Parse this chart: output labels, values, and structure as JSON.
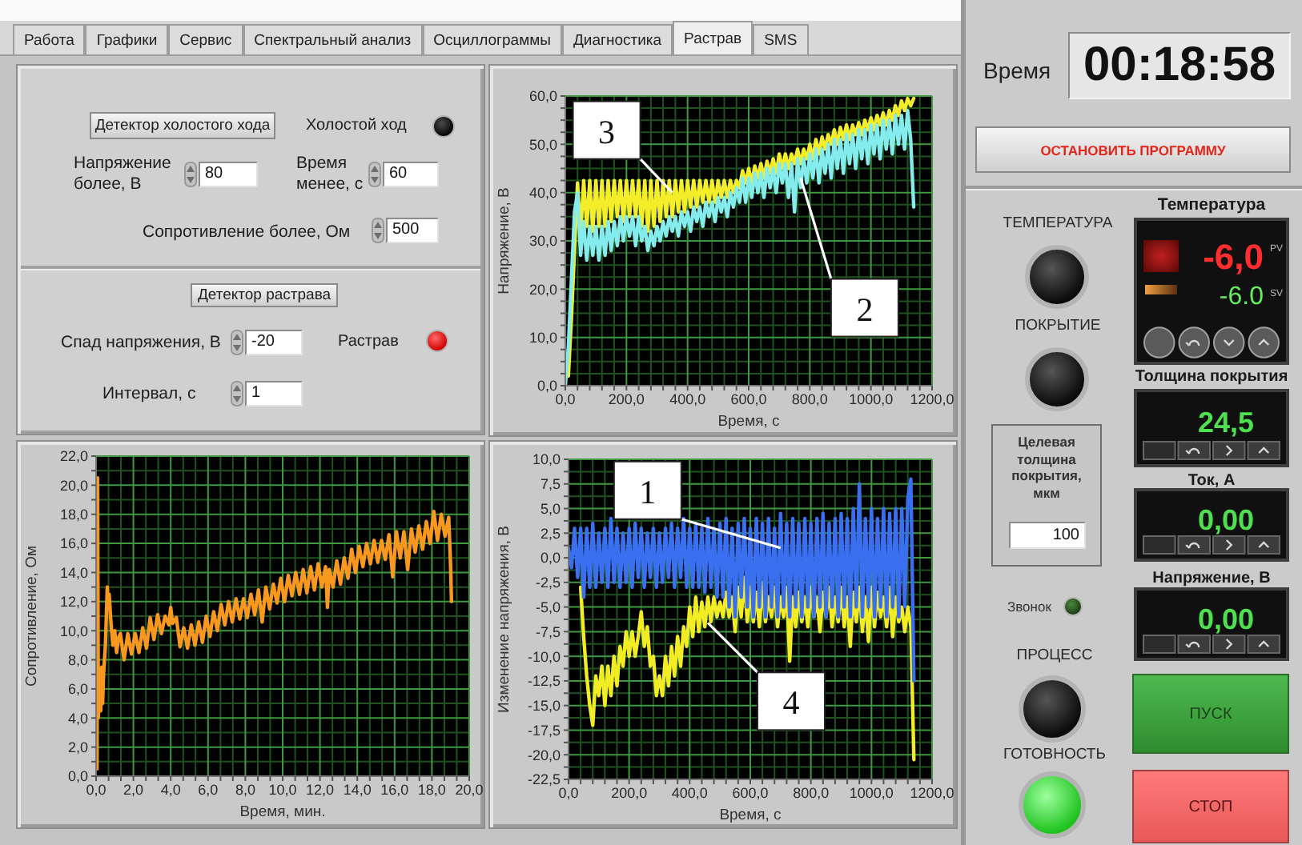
{
  "chart_data": [
    {
      "type": "other",
      "annotations": [
        "Работа",
        "Графики",
        "Сервис",
        "Спектральный анализ",
        "Осциллограммы",
        "Диагностика",
        "Растрав",
        "SMS"
      ]
    },
    {
      "type": "other",
      "annotations": [
        "Детектор холостого хода",
        "Холостой ход",
        "Напряжение более, В",
        "80",
        "Время менее, с",
        "60",
        "Сопротивление более, Ом",
        "500",
        "Детектор растрава",
        "Спад напряжения, В",
        "-20",
        "Растрав",
        "Интервал, с",
        "1"
      ]
    },
    {
      "type": "line",
      "xlabel": "Время, с",
      "ylabel": "Напряжение, В",
      "xlim": [
        0,
        1200
      ],
      "ylim": [
        0,
        60
      ],
      "xticks": [
        {
          "value": 0,
          "label": "0,0"
        },
        {
          "value": 40,
          "label": null
        },
        {
          "value": 80,
          "label": null
        },
        {
          "value": 120,
          "label": null
        },
        {
          "value": 160,
          "label": null
        },
        {
          "value": 200,
          "label": "200,0"
        },
        {
          "value": 240,
          "label": null
        },
        {
          "value": 280,
          "label": null
        },
        {
          "value": 320,
          "label": null
        },
        {
          "value": 360,
          "label": null
        },
        {
          "value": 400,
          "label": "400,0"
        },
        {
          "value": 440,
          "label": null
        },
        {
          "value": 480,
          "label": null
        },
        {
          "value": 520,
          "label": null
        },
        {
          "value": 560,
          "label": null
        },
        {
          "value": 600,
          "label": "600,0"
        },
        {
          "value": 640,
          "label": null
        },
        {
          "value": 680,
          "label": null
        },
        {
          "value": 720,
          "label": null
        },
        {
          "value": 760,
          "label": null
        },
        {
          "value": 800,
          "label": "800,0"
        },
        {
          "value": 840,
          "label": null
        },
        {
          "value": 880,
          "label": null
        },
        {
          "value": 920,
          "label": null
        },
        {
          "value": 960,
          "label": null
        },
        {
          "value": 1000,
          "label": "1000,0"
        },
        {
          "value": 1040,
          "label": null
        },
        {
          "value": 1080,
          "label": null
        },
        {
          "value": 1120,
          "label": null
        },
        {
          "value": 1160,
          "label": null
        },
        {
          "value": 1200,
          "label": "1200,0"
        }
      ],
      "yticks": [
        {
          "value": 0,
          "label": "0,0"
        },
        {
          "value": 2.5,
          "label": null
        },
        {
          "value": 5,
          "label": null
        },
        {
          "value": 7.5,
          "label": null
        },
        {
          "value": 10,
          "label": "10,0"
        },
        {
          "value": 12.5,
          "label": null
        },
        {
          "value": 15,
          "label": null
        },
        {
          "value": 17.5,
          "label": null
        },
        {
          "value": 20,
          "label": "20,0"
        },
        {
          "value": 22.5,
          "label": null
        },
        {
          "value": 25,
          "label": null
        },
        {
          "value": 27.5,
          "label": null
        },
        {
          "value": 30,
          "label": "30,0"
        },
        {
          "value": 32.5,
          "label": null
        },
        {
          "value": 35,
          "label": null
        },
        {
          "value": 37.5,
          "label": null
        },
        {
          "value": 40,
          "label": "40,0"
        },
        {
          "value": 42.5,
          "label": null
        },
        {
          "value": 45,
          "label": null
        },
        {
          "value": 47.5,
          "label": null
        },
        {
          "value": 50,
          "label": "50,0"
        },
        {
          "value": 52.5,
          "label": null
        },
        {
          "value": 55,
          "label": null
        },
        {
          "value": 57.5,
          "label": null
        },
        {
          "value": 60,
          "label": "60,0"
        }
      ],
      "grid": true,
      "x": [
        0,
        10,
        20,
        30,
        40,
        50,
        60,
        70,
        80,
        90,
        100,
        110,
        120,
        130,
        140,
        150,
        160,
        170,
        180,
        190,
        200,
        210,
        220,
        230,
        240,
        250,
        260,
        270,
        280,
        290,
        300,
        310,
        320,
        330,
        340,
        350,
        360,
        370,
        380,
        390,
        400,
        410,
        420,
        430,
        440,
        450,
        460,
        470,
        480,
        490,
        500,
        510,
        520,
        530,
        540,
        550,
        560,
        570,
        580,
        590,
        600,
        610,
        620,
        630,
        640,
        650,
        660,
        670,
        680,
        690,
        700,
        710,
        720,
        730,
        740,
        750,
        760,
        770,
        780,
        790,
        800,
        810,
        820,
        830,
        840,
        850,
        860,
        870,
        880,
        890,
        900,
        910,
        920,
        930,
        940,
        950,
        960,
        970,
        980,
        990,
        1000,
        1010,
        1020,
        1030,
        1040,
        1050,
        1060,
        1070,
        1080,
        1090,
        1100,
        1110,
        1120,
        1130,
        1140
      ],
      "series": [
        {
          "color": "#f4ee2a",
          "values": [
            null,
            2,
            14,
            28,
            42,
            31,
            42.5,
            33,
            42.5,
            32,
            42.5,
            33,
            42.5,
            33,
            42.5,
            34,
            42.5,
            35,
            42.5,
            34,
            42.5,
            35,
            42.5,
            35,
            42.5,
            33,
            42.5,
            32,
            42.5,
            33,
            42.5,
            34,
            42.5,
            35,
            42.5,
            35,
            42.5,
            36,
            42.5,
            36,
            42.5,
            37,
            42.5,
            37,
            42.5,
            38,
            42.5,
            38,
            42.5,
            38,
            42.5,
            39,
            42.5,
            39,
            42.5,
            40,
            42.5,
            41,
            44.5,
            42,
            45,
            42,
            45.5,
            43,
            46,
            43,
            46.5,
            44,
            47,
            44,
            48,
            45,
            48,
            45,
            48,
            46,
            49,
            46,
            49,
            47,
            50,
            47,
            51,
            48,
            51.5,
            49,
            52,
            50,
            53,
            50,
            53.5,
            51,
            54,
            51,
            54,
            52,
            54.5,
            52,
            55,
            53,
            55.5,
            53,
            56,
            54,
            56.5,
            54,
            57,
            55,
            58,
            56,
            59,
            57,
            59.5,
            58,
            59.5
          ]
        },
        {
          "color": "#84ecec",
          "values": [
            0,
            8,
            22,
            36,
            40,
            27,
            34,
            26,
            33,
            27,
            33,
            26,
            33,
            27,
            34,
            28,
            34,
            29,
            35,
            30,
            35,
            31,
            35,
            29,
            35,
            30,
            33,
            28,
            32,
            29,
            33,
            30,
            34,
            31,
            35,
            32,
            35,
            31,
            36,
            33,
            36,
            32,
            37,
            34,
            37,
            33,
            38,
            35,
            38,
            34,
            39,
            36,
            39,
            35,
            40,
            37,
            41,
            38,
            43,
            38,
            43,
            39,
            44,
            40,
            44,
            39,
            45,
            41,
            45,
            40,
            46,
            42,
            46,
            39,
            46,
            36,
            47,
            41,
            47,
            42,
            48,
            43,
            49,
            42,
            49,
            44,
            50,
            43,
            51,
            45,
            51,
            44,
            52,
            46,
            52,
            45,
            53,
            47,
            53,
            46,
            54,
            48,
            54,
            47,
            55,
            49,
            55,
            48,
            56,
            50,
            56,
            49,
            57,
            51,
            37
          ]
        }
      ],
      "annotations": [
        {
          "text": "3",
          "x": 350,
          "y": 40
        },
        {
          "text": "2",
          "x": 770,
          "y": 43
        }
      ]
    },
    {
      "type": "other",
      "annotations": [
        "Время",
        "00:18:58",
        "ОСТАНОВИТЬ ПРОГРАММУ",
        "ТЕМПЕРАТУРА",
        "ПОКРЫТИЕ",
        "Температура",
        "-6,0",
        "-6.0",
        "PV",
        "SV",
        "Толщина покрытия",
        "24,5",
        "Целевая толщина покрытия, мкм",
        "100",
        "Ток, А",
        "0,00",
        "Напряжение, В",
        "0,00",
        "Звонок",
        "ПРОЦЕСС",
        "ГОТОВНОСТЬ",
        "ПУСК",
        "СТОП"
      ]
    },
    {
      "type": "line",
      "xlabel": "Время, мин.",
      "ylabel": "Сопротивление, Ом",
      "xlim": [
        0,
        20
      ],
      "ylim": [
        0,
        22
      ],
      "xticks": [
        {
          "value": 0,
          "label": "0,0"
        },
        {
          "value": 0.67,
          "label": null
        },
        {
          "value": 1.33,
          "label": null
        },
        {
          "value": 2,
          "label": "2,0"
        },
        {
          "value": 2.67,
          "label": null
        },
        {
          "value": 3.33,
          "label": null
        },
        {
          "value": 4,
          "label": "4,0"
        },
        {
          "value": 4.67,
          "label": null
        },
        {
          "value": 5.33,
          "label": null
        },
        {
          "value": 6,
          "label": "6,0"
        },
        {
          "value": 6.67,
          "label": null
        },
        {
          "value": 7.33,
          "label": null
        },
        {
          "value": 8,
          "label": "8,0"
        },
        {
          "value": 8.67,
          "label": null
        },
        {
          "value": 9.33,
          "label": null
        },
        {
          "value": 10,
          "label": "10,0"
        },
        {
          "value": 10.67,
          "label": null
        },
        {
          "value": 11.33,
          "label": null
        },
        {
          "value": 12,
          "label": "12,0"
        },
        {
          "value": 12.67,
          "label": null
        },
        {
          "value": 13.33,
          "label": null
        },
        {
          "value": 14,
          "label": "14,0"
        },
        {
          "value": 14.67,
          "label": null
        },
        {
          "value": 15.33,
          "label": null
        },
        {
          "value": 16,
          "label": "16,0"
        },
        {
          "value": 16.67,
          "label": null
        },
        {
          "value": 17.33,
          "label": null
        },
        {
          "value": 18,
          "label": "18,0"
        },
        {
          "value": 18.67,
          "label": null
        },
        {
          "value": 19.33,
          "label": null
        },
        {
          "value": 20,
          "label": "20,0"
        }
      ],
      "yticks": [
        {
          "value": 0,
          "label": "0,0"
        },
        {
          "value": 1,
          "label": null
        },
        {
          "value": 2,
          "label": "2,0"
        },
        {
          "value": 3,
          "label": null
        },
        {
          "value": 4,
          "label": "4,0"
        },
        {
          "value": 5,
          "label": null
        },
        {
          "value": 6,
          "label": "6,0"
        },
        {
          "value": 7,
          "label": null
        },
        {
          "value": 8,
          "label": "8,0"
        },
        {
          "value": 9,
          "label": null
        },
        {
          "value": 10,
          "label": "10,0"
        },
        {
          "value": 11,
          "label": null
        },
        {
          "value": 12,
          "label": "12,0"
        },
        {
          "value": 13,
          "label": null
        },
        {
          "value": 14,
          "label": "14,0"
        },
        {
          "value": 15,
          "label": null
        },
        {
          "value": 16,
          "label": "16,0"
        },
        {
          "value": 17,
          "label": null
        },
        {
          "value": 18,
          "label": "18,0"
        },
        {
          "value": 19,
          "label": null
        },
        {
          "value": 20,
          "label": "20,0"
        },
        {
          "value": 21,
          "label": null
        },
        {
          "value": 22,
          "label": "22,0"
        }
      ],
      "grid": true,
      "x": [
        0.05,
        0.08,
        0.12,
        0.2,
        0.25,
        0.3,
        0.35,
        0.4,
        0.5,
        0.55,
        0.6,
        0.65,
        0.7,
        0.8,
        0.9,
        1.0,
        1.1,
        1.2,
        1.3,
        1.5,
        1.7,
        1.9,
        2.1,
        2.3,
        2.5,
        2.7,
        2.9,
        3.1,
        3.3,
        3.5,
        3.7,
        3.9,
        4.0,
        4.1,
        4.3,
        4.5,
        4.7,
        4.9,
        5.1,
        5.3,
        5.5,
        5.7,
        5.9,
        6.1,
        6.3,
        6.5,
        6.7,
        6.9,
        7.1,
        7.3,
        7.5,
        7.7,
        7.9,
        8.1,
        8.3,
        8.5,
        8.7,
        8.9,
        9.1,
        9.3,
        9.5,
        9.7,
        9.9,
        10.1,
        10.3,
        10.5,
        10.7,
        10.9,
        11.1,
        11.3,
        11.5,
        11.7,
        11.9,
        12.1,
        12.3,
        12.4,
        12.5,
        12.7,
        12.9,
        13.1,
        13.3,
        13.5,
        13.7,
        13.9,
        14.1,
        14.3,
        14.5,
        14.7,
        14.9,
        15.1,
        15.3,
        15.5,
        15.7,
        15.9,
        16.1,
        16.3,
        16.5,
        16.7,
        16.9,
        17.1,
        17.3,
        17.5,
        17.7,
        17.9,
        18.1,
        18.3,
        18.5,
        18.7,
        18.9,
        19.0,
        19.05
      ],
      "series": [
        {
          "color": "#f8981e",
          "values": [
            0.5,
            20.5,
            4,
            7,
            4.5,
            7.5,
            5,
            7,
            9,
            11,
            13,
            11.5,
            12.5,
            10.5,
            9,
            10,
            8.5,
            9.5,
            9.8,
            8.0,
            9.8,
            8.4,
            9.8,
            8.5,
            10.2,
            8.8,
            10.9,
            9.4,
            11.1,
            9.8,
            11.0,
            10.4,
            11.6,
            10.5,
            10.9,
            8.9,
            10.2,
            8.8,
            10.4,
            9.0,
            10.6,
            9.2,
            11.0,
            9.6,
            11.3,
            10.0,
            11.8,
            10.4,
            12.0,
            10.6,
            12.2,
            10.8,
            12.2,
            10.9,
            12.5,
            11.1,
            12.8,
            10.6,
            13.0,
            11.5,
            13.2,
            11.9,
            13.6,
            12.0,
            13.8,
            12.4,
            14.0,
            12.5,
            14.2,
            12.6,
            14.4,
            12.8,
            14.6,
            13.0,
            14.4,
            11.6,
            14.2,
            13.0,
            14.8,
            13.2,
            15.0,
            13.6,
            15.6,
            14.0,
            15.8,
            14.4,
            16.0,
            14.6,
            16.2,
            14.7,
            16.2,
            14.9,
            16.6,
            13.7,
            16.8,
            15.0,
            16.8,
            14.2,
            17.0,
            15.4,
            17.2,
            15.6,
            17.5,
            16.0,
            18.2,
            16.2,
            18.0,
            16.5,
            17.8,
            14.5,
            12.0
          ]
        }
      ]
    },
    {
      "type": "line",
      "xlabel": "Время, с",
      "ylabel": "Изменение напряжения, В",
      "xlim": [
        0,
        1200
      ],
      "ylim": [
        -22.5,
        10
      ],
      "xticks": [
        {
          "value": 0,
          "label": "0,0"
        },
        {
          "value": 40,
          "label": null
        },
        {
          "value": 80,
          "label": null
        },
        {
          "value": 120,
          "label": null
        },
        {
          "value": 160,
          "label": null
        },
        {
          "value": 200,
          "label": "200,0"
        },
        {
          "value": 240,
          "label": null
        },
        {
          "value": 280,
          "label": null
        },
        {
          "value": 320,
          "label": null
        },
        {
          "value": 360,
          "label": null
        },
        {
          "value": 400,
          "label": "400,0"
        },
        {
          "value": 440,
          "label": null
        },
        {
          "value": 480,
          "label": null
        },
        {
          "value": 520,
          "label": null
        },
        {
          "value": 560,
          "label": null
        },
        {
          "value": 600,
          "label": "600,0"
        },
        {
          "value": 640,
          "label": null
        },
        {
          "value": 680,
          "label": null
        },
        {
          "value": 720,
          "label": null
        },
        {
          "value": 760,
          "label": null
        },
        {
          "value": 800,
          "label": "800,0"
        },
        {
          "value": 840,
          "label": null
        },
        {
          "value": 880,
          "label": null
        },
        {
          "value": 920,
          "label": null
        },
        {
          "value": 960,
          "label": null
        },
        {
          "value": 1000,
          "label": "1000,0"
        },
        {
          "value": 1040,
          "label": null
        },
        {
          "value": 1080,
          "label": null
        },
        {
          "value": 1120,
          "label": null
        },
        {
          "value": 1160,
          "label": null
        },
        {
          "value": 1200,
          "label": "1200,0"
        }
      ],
      "yticks": [
        {
          "value": -22.5,
          "label": "-22,5"
        },
        {
          "value": -21.25,
          "label": null
        },
        {
          "value": -20,
          "label": "-20,0"
        },
        {
          "value": -18.75,
          "label": null
        },
        {
          "value": -17.5,
          "label": "-17,5"
        },
        {
          "value": -16.25,
          "label": null
        },
        {
          "value": -15,
          "label": "-15,0"
        },
        {
          "value": -13.75,
          "label": null
        },
        {
          "value": -12.5,
          "label": "-12,5"
        },
        {
          "value": -11.25,
          "label": null
        },
        {
          "value": -10,
          "label": "-10,0"
        },
        {
          "value": -8.75,
          "label": null
        },
        {
          "value": -7.5,
          "label": "-7,5"
        },
        {
          "value": -6.25,
          "label": null
        },
        {
          "value": -5,
          "label": "-5,0"
        },
        {
          "value": -3.75,
          "label": null
        },
        {
          "value": -2.5,
          "label": "-2,5"
        },
        {
          "value": -1.25,
          "label": null
        },
        {
          "value": 0,
          "label": "0,0"
        },
        {
          "value": 1.25,
          "label": null
        },
        {
          "value": 2.5,
          "label": "2,5"
        },
        {
          "value": 3.75,
          "label": null
        },
        {
          "value": 5,
          "label": "5,0"
        },
        {
          "value": 6.25,
          "label": null
        },
        {
          "value": 7.5,
          "label": "7,5"
        },
        {
          "value": 8.75,
          "label": null
        },
        {
          "value": 10,
          "label": "10,0"
        }
      ],
      "grid": true,
      "x": [
        0,
        10,
        20,
        30,
        40,
        50,
        60,
        70,
        80,
        90,
        100,
        110,
        120,
        130,
        140,
        150,
        160,
        170,
        180,
        190,
        200,
        210,
        220,
        230,
        240,
        250,
        260,
        270,
        280,
        290,
        300,
        310,
        320,
        330,
        340,
        350,
        360,
        370,
        380,
        390,
        400,
        410,
        420,
        430,
        440,
        450,
        460,
        470,
        480,
        490,
        500,
        510,
        520,
        530,
        540,
        550,
        560,
        570,
        580,
        590,
        600,
        610,
        620,
        630,
        640,
        650,
        660,
        670,
        680,
        690,
        700,
        710,
        720,
        730,
        740,
        750,
        760,
        770,
        780,
        790,
        800,
        810,
        820,
        830,
        840,
        850,
        860,
        870,
        880,
        890,
        900,
        910,
        920,
        930,
        940,
        950,
        960,
        970,
        980,
        990,
        1000,
        1010,
        1020,
        1030,
        1040,
        1050,
        1060,
        1070,
        1080,
        1090,
        1100,
        1110,
        1120,
        1130,
        1140
      ],
      "series": [
        {
          "color": "#f2ec24",
          "values": [
            null,
            null,
            null,
            null,
            -3,
            -8,
            -12,
            -15,
            -17,
            -12,
            -14,
            -11,
            -15,
            -11,
            -14,
            -10,
            -13,
            -9,
            -11,
            -7.5,
            -10,
            -7.5,
            -10,
            -8,
            -5.5,
            -9,
            -7,
            -11,
            -10,
            -14,
            -12,
            -14,
            -10,
            -13,
            -9,
            -12,
            -8,
            -11,
            -7,
            -9,
            -5,
            -8,
            -4,
            -7.5,
            -4.5,
            -7,
            -4,
            -6.5,
            -4,
            -6,
            -4.5,
            -6,
            -3.5,
            -6,
            -4,
            -7.5,
            -3,
            -6,
            -2,
            -6.5,
            -3,
            -6.5,
            -3.5,
            -7,
            -2.5,
            -6.5,
            -4,
            -6,
            -3,
            -7,
            -4,
            -6,
            -3,
            -10.5,
            -4,
            -7,
            -3.5,
            -6.5,
            -4,
            -7,
            -3,
            -6,
            -4,
            -7.5,
            -3.5,
            -6,
            -3,
            -7,
            -4,
            -6.5,
            -3,
            -7,
            -4,
            -9,
            -3.5,
            -6.5,
            -3,
            -7.5,
            -4,
            -8.5,
            -3,
            -7,
            -3.5,
            -6,
            -4,
            -7,
            -3,
            -8,
            -4,
            -6.5,
            -5,
            -7.5,
            -5,
            -7,
            -20.5
          ]
        },
        {
          "color": "#3a6ff0",
          "values": [
            1,
            -1,
            3,
            -2,
            3,
            -4,
            3,
            -3,
            3.5,
            -3,
            2.5,
            -2.5,
            3,
            -3,
            4,
            -2.5,
            3,
            -3,
            2.5,
            -2.5,
            3,
            -3,
            3.5,
            -2,
            3,
            -3,
            2.5,
            -2,
            3,
            -3,
            2.5,
            -2.5,
            3,
            -2,
            3.5,
            -3,
            3,
            -2,
            4,
            -3,
            3,
            -3,
            3.5,
            -3,
            3,
            -3.5,
            4,
            -3,
            3,
            -4,
            3.5,
            -4,
            4,
            -5,
            3,
            -6,
            3.5,
            -4,
            4,
            -5,
            3,
            -6,
            4,
            -5,
            3.5,
            -6,
            4,
            -5,
            3,
            -6,
            4.5,
            -5,
            3.5,
            -6,
            4,
            -5,
            3.5,
            -6,
            4,
            -5,
            3.5,
            -6,
            4,
            -5,
            4.5,
            -6,
            3.5,
            -5,
            4,
            -6,
            4.5,
            -5,
            4,
            -6,
            5,
            -5,
            7.5,
            -6,
            4,
            -5,
            5,
            -6,
            4,
            -5,
            5,
            -6,
            4.5,
            -5,
            5,
            -6,
            5,
            -5,
            6,
            8,
            -12.5
          ]
        }
      ],
      "annotations": [
        {
          "text": "1",
          "x": 700,
          "y": 1
        },
        {
          "text": "4",
          "x": 460,
          "y": -6.6
        }
      ]
    }
  ]
}
